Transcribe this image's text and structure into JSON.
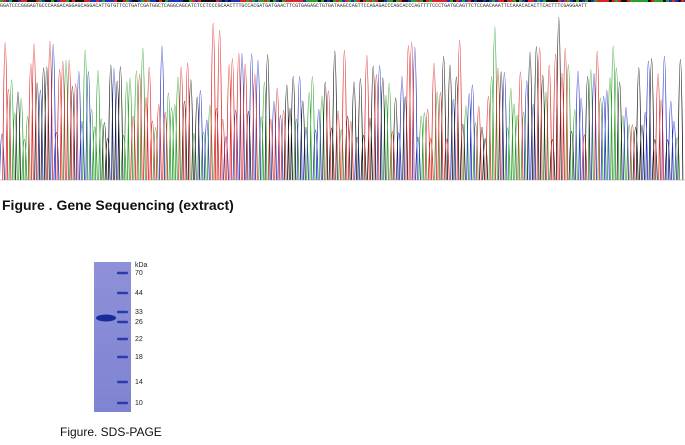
{
  "sequence": "GGATCCCGGGAGTGCCCAAGACAGGAGCAGGACATTGTGTTCCTGATCGATGGCTCAGGCAGCATCTCCTCCCGCAACTTTGCCACGATGATGAACTTCGTGAGAGCTGTGATAAGCCAGTTCCAGAGACCCAGCACCCAGTTTTCCCTGATGCAGTTCTCCAACAAATTCCAAACACACTTCACTTTCGAGGAATT",
  "sequencing_caption": "Figure . Gene Sequencing (extract)",
  "gel": {
    "unit": "kDa",
    "markers": [
      "70",
      "44",
      "33",
      "26",
      "22",
      "18",
      "14",
      "10"
    ]
  },
  "gel_caption": "Figure. SDS-PAGE"
}
